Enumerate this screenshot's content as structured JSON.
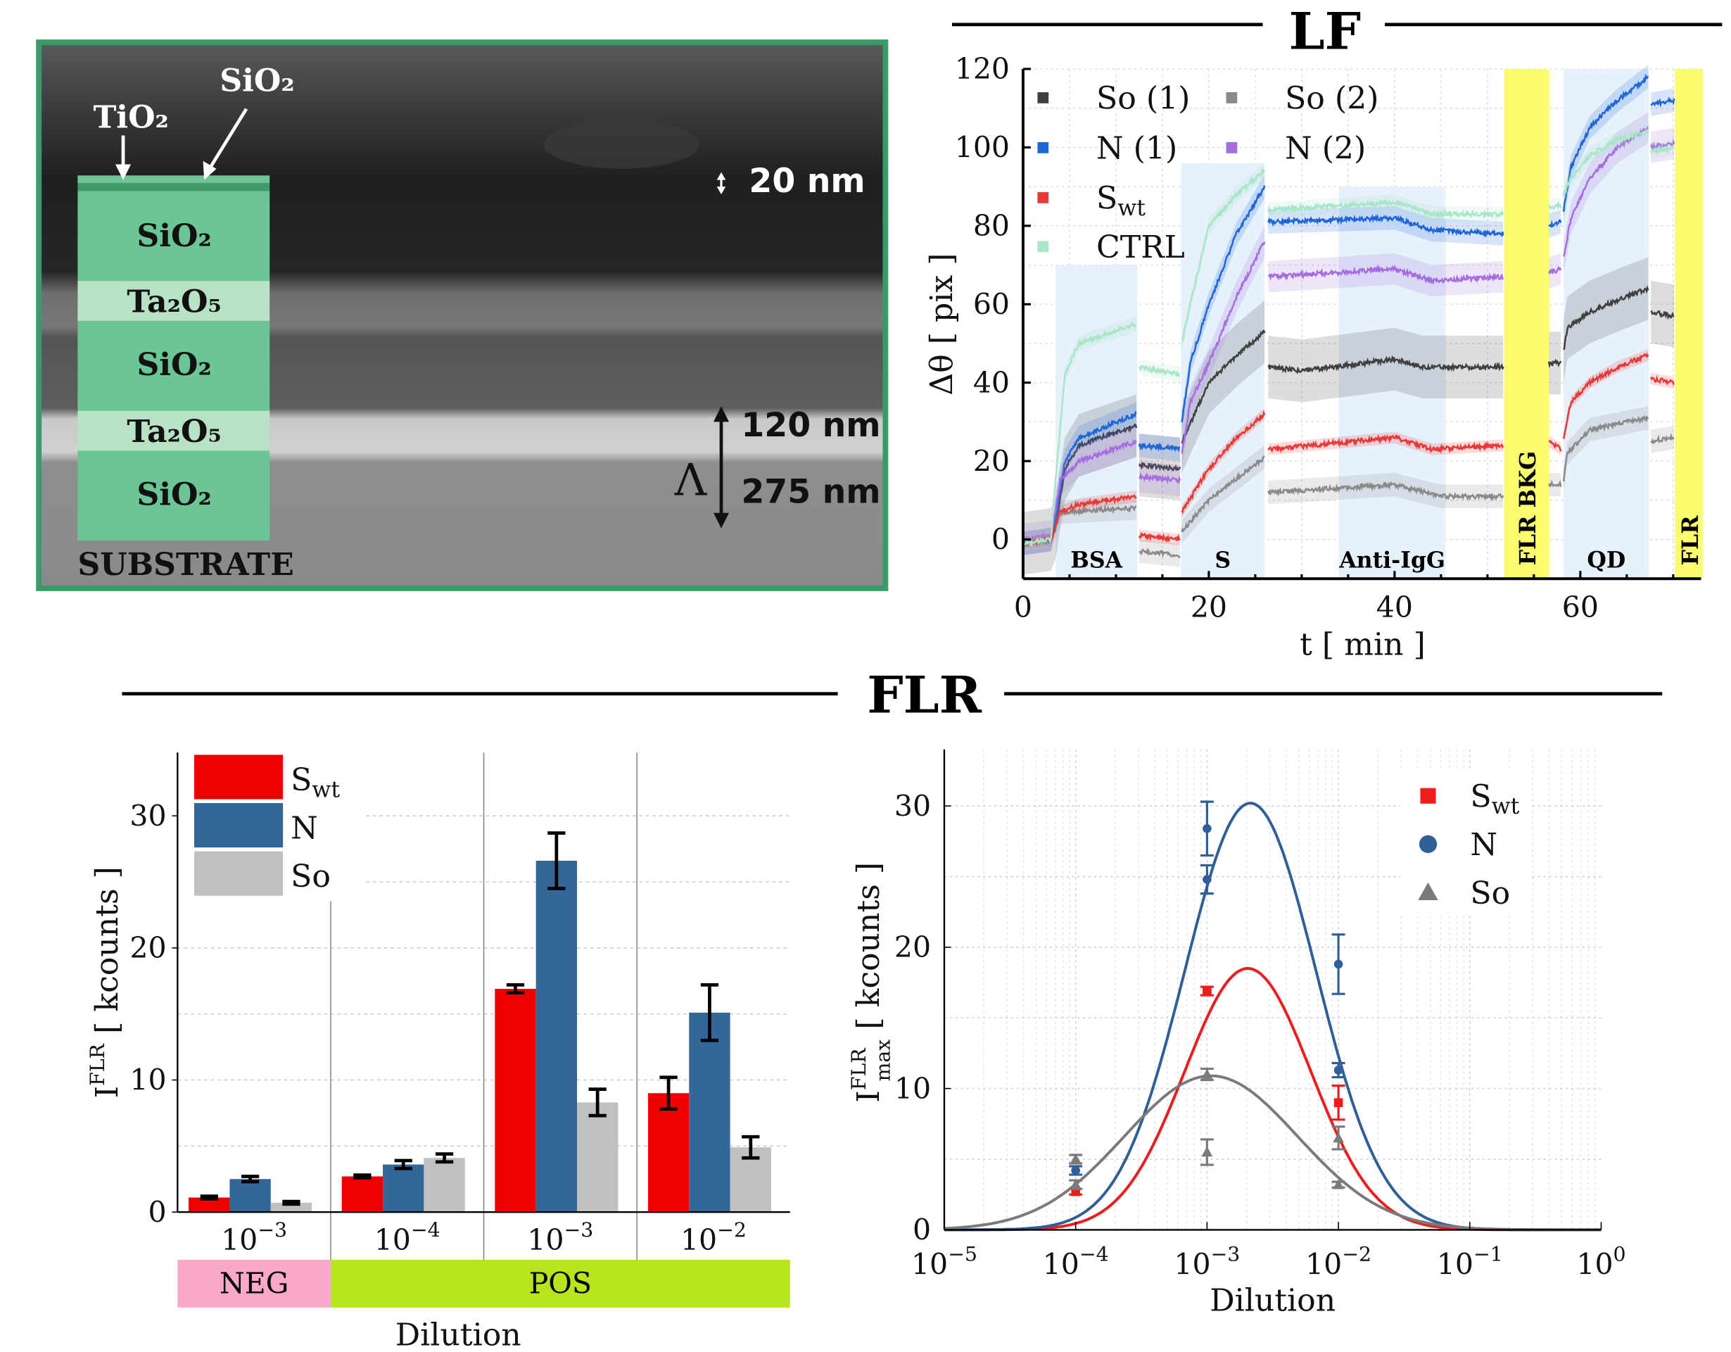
{
  "sem": {
    "labels": {
      "tio2": "TiO₂",
      "sio2_top": "SiO₂",
      "thin": "20 nm",
      "ta_thk": "120 nm",
      "period": "275 nm",
      "lambda": "Λ",
      "substrate": "SUBSTRATE"
    },
    "layers": [
      "SiO₂",
      "Ta₂O₅",
      "SiO₂",
      "Ta₂O₅",
      "SiO₂"
    ],
    "colors": {
      "frame": "#3a9a68",
      "layer_sio2": "#6cc594",
      "layer_ta2o5": "#b9e2c4"
    }
  },
  "sections": {
    "lf": "LF",
    "flr": "FLR"
  },
  "chart_data": [
    {
      "type": "line",
      "title": "LF",
      "xlabel": "t [ min ]",
      "ylabel": "Δθ [ pix ]",
      "xlim": [
        0,
        73
      ],
      "ylim": [
        -10,
        120
      ],
      "xticks": [
        0,
        20,
        40,
        60
      ],
      "yticks": [
        0,
        20,
        40,
        60,
        80,
        100,
        120
      ],
      "grid": true,
      "legend": "top-left",
      "regions": [
        {
          "label": "BSA",
          "x": [
            3.5,
            12.3
          ],
          "ytop": 70,
          "color": "#e6f1fb",
          "rotated": false
        },
        {
          "label": "S",
          "x": [
            17,
            26
          ],
          "ytop": 96,
          "color": "#e6f1fb",
          "rotated": false
        },
        {
          "label": "Anti-IgG",
          "x": [
            34,
            45.5
          ],
          "ytop": 90,
          "color": "#e6f1fb",
          "rotated": false
        },
        {
          "label": "FLR BKG",
          "x": [
            51.8,
            56.6
          ],
          "ytop": 120,
          "color": "#fbfb6e",
          "rotated": true
        },
        {
          "label": "QD",
          "x": [
            58.2,
            67.4
          ],
          "ytop": 120,
          "color": "#e6f1fb",
          "rotated": false
        },
        {
          "label": "FLR",
          "x": [
            70.2,
            73.2
          ],
          "ytop": 120,
          "color": "#fbfb6e",
          "rotated": true
        }
      ],
      "series": [
        {
          "name": "So (1)",
          "sub": "",
          "color": "#404040",
          "band": 8,
          "segments": [
            [
              [
                0,
                -1
              ],
              [
                3,
                0
              ],
              [
                3.5,
                3
              ],
              [
                4.5,
                18
              ],
              [
                6,
                24
              ],
              [
                12.2,
                29
              ]
            ],
            [
              [
                12.5,
                19
              ],
              [
                16.9,
                18
              ]
            ],
            [
              [
                17.1,
                25
              ],
              [
                20,
                40
              ],
              [
                23,
                47
              ],
              [
                26,
                53
              ]
            ],
            [
              [
                26.4,
                44
              ],
              [
                30,
                43
              ],
              [
                40,
                46
              ],
              [
                43,
                44
              ],
              [
                51.7,
                44
              ]
            ],
            [
              [
                56.6,
                45
              ],
              [
                57.9,
                45
              ]
            ],
            [
              [
                58.2,
                48
              ],
              [
                58.6,
                54
              ],
              [
                61,
                58
              ],
              [
                64,
                61
              ],
              [
                67.3,
                64
              ]
            ],
            [
              [
                67.6,
                58
              ],
              [
                70.1,
                57
              ]
            ]
          ]
        },
        {
          "name": "So (2)",
          "sub": "",
          "color": "#8a8a8a",
          "band": 3,
          "segments": [
            [
              [
                0,
                -1
              ],
              [
                3,
                0
              ],
              [
                4,
                7
              ],
              [
                12.2,
                8
              ]
            ],
            [
              [
                12.5,
                -3
              ],
              [
                16.9,
                -4
              ]
            ],
            [
              [
                17.1,
                2
              ],
              [
                20,
                10
              ],
              [
                26,
                21
              ]
            ],
            [
              [
                26.4,
                12
              ],
              [
                40,
                14
              ],
              [
                45,
                11
              ],
              [
                51.7,
                11
              ]
            ],
            [
              [
                56.6,
                14
              ],
              [
                57.9,
                14
              ]
            ],
            [
              [
                58.2,
                15
              ],
              [
                58.6,
                22
              ],
              [
                61,
                28
              ],
              [
                67.3,
                31
              ]
            ],
            [
              [
                67.6,
                25
              ],
              [
                70.1,
                26
              ]
            ]
          ]
        },
        {
          "name": "N (1)",
          "sub": "",
          "color": "#1f66d8",
          "band": 3,
          "segments": [
            [
              [
                0,
                -1
              ],
              [
                3,
                0
              ],
              [
                3.5,
                5
              ],
              [
                4.5,
                20
              ],
              [
                6,
                26
              ],
              [
                12.2,
                32
              ]
            ],
            [
              [
                12.5,
                24
              ],
              [
                16.9,
                23
              ]
            ],
            [
              [
                17.1,
                30
              ],
              [
                18,
                45
              ],
              [
                20,
                60
              ],
              [
                23,
                78
              ],
              [
                26,
                90
              ]
            ],
            [
              [
                26.4,
                81
              ],
              [
                40,
                82
              ],
              [
                44,
                79
              ],
              [
                51.7,
                78
              ]
            ],
            [
              [
                56.6,
                80
              ],
              [
                57.9,
                81
              ]
            ],
            [
              [
                58.2,
                84
              ],
              [
                59,
                95
              ],
              [
                61,
                105
              ],
              [
                64,
                112
              ],
              [
                67.3,
                118
              ]
            ],
            [
              [
                67.6,
                111
              ],
              [
                70.1,
                112
              ]
            ]
          ]
        },
        {
          "name": "N (2)",
          "sub": "",
          "color": "#a56de0",
          "band": 4,
          "segments": [
            [
              [
                0,
                0
              ],
              [
                3,
                1
              ],
              [
                4,
                15
              ],
              [
                6,
                20
              ],
              [
                12.2,
                25
              ]
            ],
            [
              [
                12.5,
                16
              ],
              [
                16.9,
                15
              ]
            ],
            [
              [
                17.1,
                22
              ],
              [
                18,
                35
              ],
              [
                20,
                45
              ],
              [
                23,
                62
              ],
              [
                26,
                76
              ]
            ],
            [
              [
                26.4,
                67
              ],
              [
                40,
                69
              ],
              [
                44,
                66
              ],
              [
                51.7,
                67
              ]
            ],
            [
              [
                56.6,
                68
              ],
              [
                57.9,
                69
              ]
            ],
            [
              [
                58.2,
                72
              ],
              [
                59,
                82
              ],
              [
                61,
                92
              ],
              [
                64,
                100
              ],
              [
                67.3,
                105
              ]
            ],
            [
              [
                67.6,
                100
              ],
              [
                70.1,
                101
              ]
            ]
          ]
        },
        {
          "name": "S",
          "sub": "wt",
          "color": "#e83838",
          "band": 1.5,
          "segments": [
            [
              [
                0,
                -1
              ],
              [
                3,
                0
              ],
              [
                4,
                7
              ],
              [
                6,
                9
              ],
              [
                12.2,
                11
              ]
            ],
            [
              [
                12.5,
                1
              ],
              [
                16.9,
                0
              ]
            ],
            [
              [
                17.1,
                7
              ],
              [
                20,
                18
              ],
              [
                23,
                26
              ],
              [
                26,
                32
              ]
            ],
            [
              [
                26.4,
                23
              ],
              [
                40,
                26
              ],
              [
                44,
                23
              ],
              [
                51.7,
                24
              ]
            ],
            [
              [
                56.6,
                25
              ],
              [
                57.9,
                23
              ]
            ],
            [
              [
                58.2,
                26
              ],
              [
                59,
                35
              ],
              [
                61,
                40
              ],
              [
                64,
                44
              ],
              [
                67.3,
                47
              ]
            ],
            [
              [
                67.6,
                41
              ],
              [
                70.1,
                40
              ]
            ]
          ]
        },
        {
          "name": "CTRL",
          "sub": "",
          "color": "#a8e6c8",
          "band": 2,
          "segments": [
            [
              [
                0,
                -1
              ],
              [
                3,
                0
              ],
              [
                3.5,
                15
              ],
              [
                4.5,
                42
              ],
              [
                6,
                50
              ],
              [
                12.2,
                55
              ]
            ],
            [
              [
                12.5,
                44
              ],
              [
                16.9,
                42
              ]
            ],
            [
              [
                17.1,
                50
              ],
              [
                18,
                60
              ],
              [
                20,
                80
              ],
              [
                23,
                88
              ],
              [
                26,
                94
              ]
            ],
            [
              [
                26.4,
                84
              ],
              [
                40,
                86
              ],
              [
                44,
                83
              ],
              [
                51.7,
                83
              ]
            ],
            [
              [
                56.6,
                85
              ],
              [
                57.9,
                85
              ]
            ],
            [
              [
                58.2,
                88
              ],
              [
                59,
                92
              ],
              [
                61,
                98
              ],
              [
                64,
                102
              ],
              [
                67.3,
                104
              ]
            ],
            [
              [
                67.6,
                99
              ],
              [
                70.1,
                100
              ]
            ]
          ]
        }
      ]
    },
    {
      "type": "bar",
      "xlabel": "Dilution",
      "ylabel": "I",
      "ylabel_sup": "FLR",
      "ylabel_unit": " [ kcounts ]",
      "ylim": [
        0,
        35
      ],
      "yticks": [
        0,
        10,
        20,
        30
      ],
      "grid": true,
      "legend": "top-left",
      "categories": [
        {
          "base": "10",
          "exp": "−3"
        },
        {
          "base": "10",
          "exp": "−4"
        },
        {
          "base": "10",
          "exp": "−3"
        },
        {
          "base": "10",
          "exp": "−2"
        }
      ],
      "groups": [
        {
          "label": "NEG",
          "span": 1,
          "color": "#f9a9c7"
        },
        {
          "label": "POS",
          "span": 3,
          "color": "#b8e41e"
        }
      ],
      "series": [
        {
          "name": "S",
          "sub": "wt",
          "color": "#ee0000",
          "values": [
            1.1,
            2.7,
            16.9,
            9.0
          ],
          "errors": [
            0.1,
            0.1,
            0.3,
            1.2
          ]
        },
        {
          "name": "N",
          "sub": "",
          "color": "#336699",
          "values": [
            2.5,
            3.6,
            26.6,
            15.1
          ],
          "errors": [
            0.2,
            0.3,
            2.1,
            2.1
          ]
        },
        {
          "name": "So",
          "sub": "",
          "color": "#c0c0c0",
          "values": [
            0.7,
            4.1,
            8.3,
            4.9
          ],
          "errors": [
            0.1,
            0.3,
            1.0,
            0.8
          ]
        }
      ]
    },
    {
      "type": "scatter",
      "xlabel": "Dilution",
      "ylabel": "I",
      "ylabel_sup": "FLR",
      "ylabel_sub": "max",
      "ylabel_unit": " [ kcounts ]",
      "xscale": "log",
      "xlim_exp": [
        -5,
        0
      ],
      "xticks_exp": [
        "−5",
        "−4",
        "−3",
        "−2",
        "−1",
        "0"
      ],
      "ylim": [
        0,
        34
      ],
      "yticks": [
        0,
        10,
        20,
        30
      ],
      "grid": true,
      "legend": "top-right",
      "series": [
        {
          "name": "S",
          "sub": "wt",
          "color": "#ee1c1c",
          "marker": "square",
          "fit": {
            "peak": 18.5,
            "center_log10": -2.69,
            "sigma_decades": 0.48
          },
          "points": [
            [
              0.0001,
              2.7,
              0.2
            ],
            [
              0.001,
              16.9,
              0.3
            ],
            [
              0.01,
              9.0,
              1.2
            ]
          ]
        },
        {
          "name": "N",
          "sub": "",
          "color": "#2f5f96",
          "marker": "circle",
          "fit": {
            "peak": 30.2,
            "center_log10": -2.67,
            "sigma_decades": 0.5
          },
          "points": [
            [
              0.0001,
              4.2,
              0.3
            ],
            [
              0.001,
              28.4,
              1.9
            ],
            [
              0.001,
              24.8,
              1.0
            ],
            [
              0.01,
              18.8,
              2.1
            ],
            [
              0.01,
              11.3,
              0.5
            ]
          ]
        },
        {
          "name": "So",
          "sub": "",
          "color": "#7a7a7a",
          "marker": "triangle",
          "fit": {
            "peak": 10.9,
            "center_log10": -2.97,
            "sigma_decades": 0.66
          },
          "points": [
            [
              0.0001,
              5.0,
              0.3
            ],
            [
              0.0001,
              3.2,
              0.3
            ],
            [
              0.001,
              11.0,
              0.4
            ],
            [
              0.001,
              5.5,
              0.9
            ],
            [
              0.01,
              6.5,
              0.8
            ],
            [
              0.01,
              3.2,
              0.2
            ]
          ]
        }
      ]
    }
  ]
}
